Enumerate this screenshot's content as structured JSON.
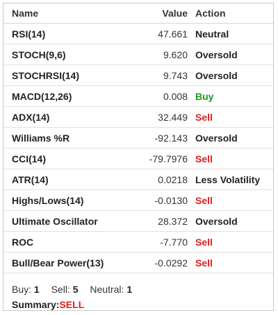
{
  "table": {
    "headers": {
      "name": "Name",
      "value": "Value",
      "action": "Action"
    },
    "rows": [
      {
        "name": "RSI(14)",
        "value": "47.661",
        "action": "Neutral",
        "action_type": "neutral"
      },
      {
        "name": "STOCH(9,6)",
        "value": "9.620",
        "action": "Oversold",
        "action_type": "oversold"
      },
      {
        "name": "STOCHRSI(14)",
        "value": "9.743",
        "action": "Oversold",
        "action_type": "oversold"
      },
      {
        "name": "MACD(12,26)",
        "value": "0.008",
        "action": "Buy",
        "action_type": "buy"
      },
      {
        "name": "ADX(14)",
        "value": "32.449",
        "action": "Sell",
        "action_type": "sell"
      },
      {
        "name": "Williams %R",
        "value": "-92.143",
        "action": "Oversold",
        "action_type": "oversold"
      },
      {
        "name": "CCI(14)",
        "value": "-79.7976",
        "action": "Sell",
        "action_type": "sell"
      },
      {
        "name": "ATR(14)",
        "value": "0.0218",
        "action": "Less Volatility",
        "action_type": "lessvol"
      },
      {
        "name": "Highs/Lows(14)",
        "value": "-0.0130",
        "action": "Sell",
        "action_type": "sell"
      },
      {
        "name": "Ultimate Oscillator",
        "value": "28.372",
        "action": "Oversold",
        "action_type": "oversold"
      },
      {
        "name": "ROC",
        "value": "-7.770",
        "action": "Sell",
        "action_type": "sell"
      },
      {
        "name": "Bull/Bear Power(13)",
        "value": "-0.0292",
        "action": "Sell",
        "action_type": "sell"
      }
    ]
  },
  "counts": {
    "buy_label": "Buy:",
    "buy": "1",
    "sell_label": "Sell:",
    "sell": "5",
    "neutral_label": "Neutral:",
    "neutral": "1"
  },
  "summary": {
    "label": "Summary:",
    "value": "SELL"
  },
  "colors": {
    "buy": "#1a9a1a",
    "sell": "#e31b1b",
    "text": "#222222",
    "border": "#c8c8c8"
  }
}
